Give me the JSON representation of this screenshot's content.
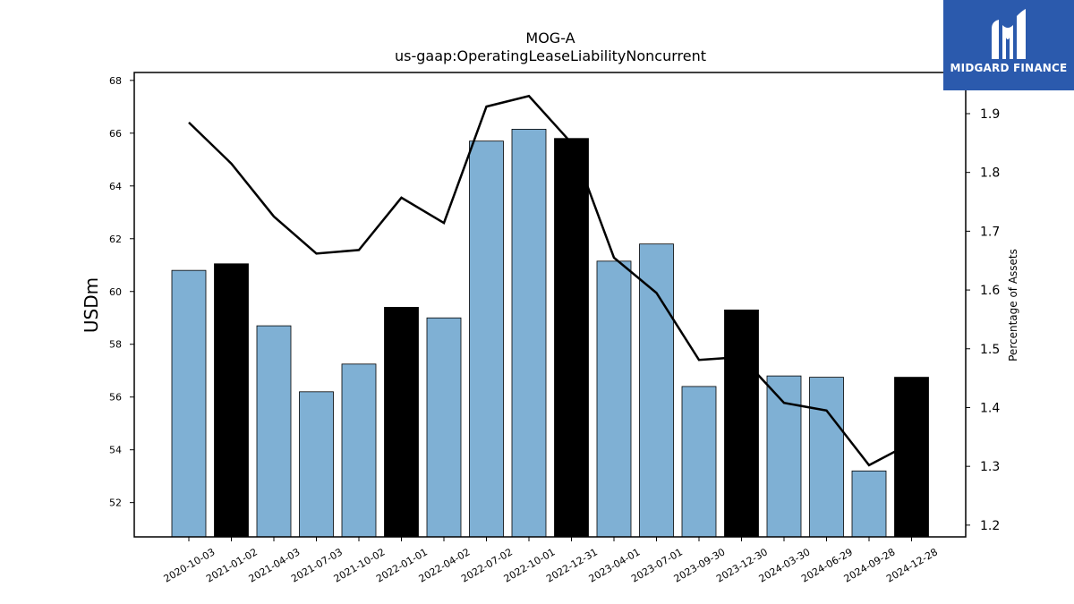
{
  "chart_data": {
    "type": "bar",
    "title": "MOG-A",
    "subtitle": "us-gaap:OperatingLeaseLiabilityNoncurrent",
    "ylabel": "USDm",
    "y2label": "Percentage of Assets",
    "ylim": [
      50.7,
      68.3
    ],
    "y2lim": [
      1.18,
      1.97
    ],
    "yticks": [
      52,
      54,
      56,
      58,
      60,
      62,
      64,
      66,
      68
    ],
    "y2ticks": [
      1.2,
      1.3,
      1.4,
      1.5,
      1.6,
      1.7,
      1.8,
      1.9
    ],
    "categories": [
      "2020-10-03",
      "2021-01-02",
      "2021-04-03",
      "2021-07-03",
      "2021-10-02",
      "2022-01-01",
      "2022-04-02",
      "2022-07-02",
      "2022-10-01",
      "2022-12-31",
      "2023-04-01",
      "2023-07-01",
      "2023-09-30",
      "2023-12-30",
      "2024-03-30",
      "2024-06-29",
      "2024-09-28",
      "2024-12-28"
    ],
    "values": [
      60.8,
      61.05,
      58.7,
      56.2,
      57.25,
      59.4,
      59.0,
      65.7,
      66.15,
      65.8,
      61.15,
      61.8,
      56.4,
      59.3,
      56.8,
      56.75,
      53.2,
      56.75
    ],
    "highlight": [
      false,
      true,
      false,
      false,
      false,
      true,
      false,
      false,
      false,
      true,
      false,
      false,
      false,
      true,
      false,
      false,
      false,
      true
    ],
    "line_series": {
      "values": [
        1.885,
        1.815,
        1.725,
        1.662,
        1.668,
        1.757,
        1.714,
        1.912,
        1.93,
        1.85,
        1.655,
        1.595,
        1.481,
        1.486,
        1.408,
        1.395,
        1.302,
        1.34
      ]
    },
    "colors": {
      "bar": "#7fb0d4",
      "bar_highlight": "#000000",
      "line": "#000000"
    }
  },
  "logo": {
    "text": "MIDGARD FINANCE",
    "background": "#2b5aad"
  }
}
